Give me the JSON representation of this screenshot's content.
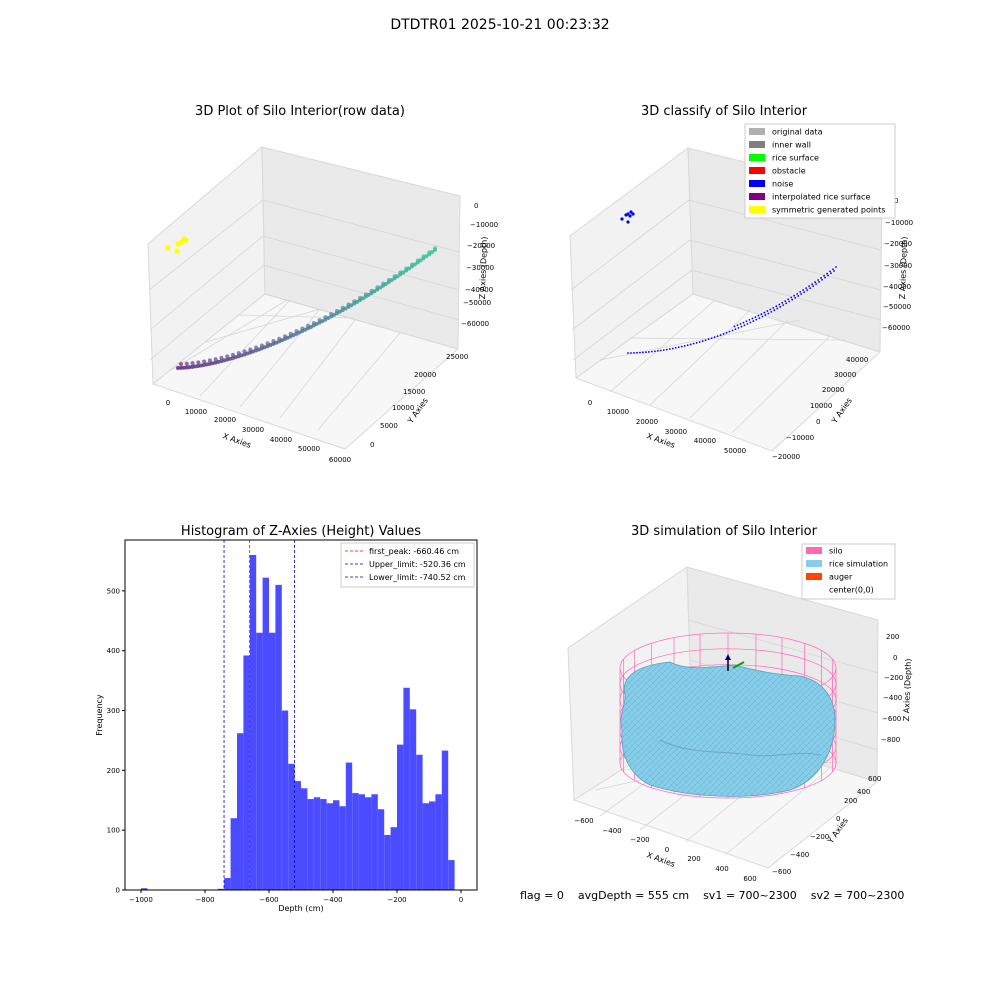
{
  "figure_title": "DTDTR01 2025-10-21 00:23:32",
  "status_bar": {
    "flag": "flag = 0",
    "avg_depth": "avgDepth = 555 cm",
    "sv1": "sv1 = 700~2300",
    "sv2": "sv2 = 700~2300"
  },
  "colors": {
    "hist_bar": "#4b4bff",
    "peak_line": "#ff0000",
    "limit_line": "#0000cc",
    "silo": "#ff69b4",
    "rice": "#87ceeb",
    "auger": "#ff4500",
    "noise": "#0000ff",
    "rice_surface": "#00ff00",
    "obstacle": "#ff0000",
    "original": "#b0b0b0",
    "inner_wall": "#808080",
    "interpolated": "#800080",
    "symmetric": "#ffff00"
  },
  "chart_data": [
    {
      "type": "scatter3d",
      "title": "3D Plot of Silo Interior(row data)",
      "xlabel": "X Axies",
      "ylabel": "Y Axies",
      "zlabel": "Z Axies (Depth)",
      "x_ticks": [
        "0",
        "10000",
        "20000",
        "30000",
        "40000",
        "50000",
        "60000"
      ],
      "y_ticks": [
        "0",
        "5000",
        "10000",
        "15000",
        "20000",
        "25000"
      ],
      "z_ticks": [
        "0",
        "−10000",
        "−20000",
        "−30000",
        "−40000",
        "−50000",
        "−60000"
      ],
      "xlim": [
        -5000,
        60000
      ],
      "ylim": [
        -3000,
        27000
      ],
      "zlim": [
        -65000,
        2000
      ]
    },
    {
      "type": "scatter3d",
      "title": "3D classify of Silo Interior",
      "xlabel": "X Axies",
      "ylabel": "Y Axies",
      "zlabel": "Z Axies (Depth)",
      "x_ticks": [
        "0",
        "10000",
        "20000",
        "30000",
        "40000",
        "50000"
      ],
      "y_ticks": [
        "−20000",
        "−10000",
        "0",
        "10000",
        "20000",
        "30000",
        "40000"
      ],
      "z_ticks": [
        "0",
        "−10000",
        "−20000",
        "−30000",
        "−40000",
        "−50000",
        "−60000"
      ],
      "xlim": [
        -5000,
        55000
      ],
      "ylim": [
        -20000,
        45000
      ],
      "zlim": [
        -65000,
        2000
      ],
      "legend_position": "top-right",
      "legend": [
        {
          "label": "original data",
          "color": "#b0b0b0"
        },
        {
          "label": "inner wall",
          "color": "#808080"
        },
        {
          "label": "rice surface",
          "color": "#00ff00"
        },
        {
          "label": "obstacle",
          "color": "#ff0000"
        },
        {
          "label": "noise",
          "color": "#0000ff"
        },
        {
          "label": "interpolated rice surface",
          "color": "#800080"
        },
        {
          "label": "symmetric generated points",
          "color": "#ffff00"
        }
      ]
    },
    {
      "type": "bar",
      "title": "Histogram of Z-Axies (Height) Values",
      "xlabel": "Depth (cm)",
      "ylabel": "Frequency",
      "xlim": [
        -1050,
        50
      ],
      "ylim": [
        0,
        585
      ],
      "x_ticks": [
        -1000,
        -800,
        -600,
        -400,
        -200,
        0
      ],
      "y_ticks": [
        0,
        100,
        200,
        300,
        400,
        500
      ],
      "bin_width": 20,
      "bin_starts": [
        -1000,
        -980,
        -960,
        -940,
        -920,
        -900,
        -880,
        -860,
        -840,
        -820,
        -800,
        -780,
        -760,
        -740,
        -720,
        -700,
        -680,
        -660,
        -640,
        -620,
        -600,
        -580,
        -560,
        -540,
        -520,
        -500,
        -480,
        -460,
        -440,
        -420,
        -400,
        -380,
        -360,
        -340,
        -320,
        -300,
        -280,
        -260,
        -240,
        -220,
        -200,
        -180,
        -160,
        -140,
        -120,
        -100,
        -80,
        -60,
        -40,
        -20
      ],
      "values": [
        3,
        0,
        0,
        0,
        0,
        0,
        0,
        0,
        0,
        0,
        0,
        0,
        2,
        20,
        120,
        262,
        392,
        560,
        430,
        522,
        430,
        510,
        300,
        211,
        182,
        170,
        152,
        155,
        152,
        145,
        150,
        140,
        213,
        162,
        160,
        155,
        160,
        135,
        92,
        105,
        243,
        338,
        302,
        226,
        145,
        148,
        160,
        233,
        50,
        0
      ],
      "legend_position": "top-right",
      "reference_lines": [
        {
          "label": "first_peak: -660.46 cm",
          "x": -660.46,
          "color": "#ff0000"
        },
        {
          "label": "Upper_limit: -520.36 cm",
          "x": -520.36,
          "color": "#0000cc"
        },
        {
          "label": "Lower_limit: -740.52 cm",
          "x": -740.52,
          "color": "#0000cc"
        }
      ]
    },
    {
      "type": "surface3d",
      "title": "3D simulation of Silo Interior",
      "xlabel": "X Axies",
      "ylabel": "Y Axies",
      "zlabel": "Z Axies (Depth)",
      "x_ticks": [
        "−600",
        "−400",
        "−200",
        "0",
        "200",
        "400",
        "600"
      ],
      "y_ticks": [
        "−600",
        "−400",
        "−200",
        "0",
        "200",
        "400",
        "600"
      ],
      "z_ticks": [
        "200",
        "0",
        "−200",
        "−400",
        "−600",
        "−800"
      ],
      "legend_position": "top-right",
      "legend": [
        {
          "label": "silo",
          "color": "#ff69b4"
        },
        {
          "label": "rice simulation",
          "color": "#87ceeb"
        },
        {
          "label": "auger",
          "color": "#ff4500"
        },
        {
          "label": "center(0,0)",
          "color": ""
        }
      ]
    }
  ]
}
